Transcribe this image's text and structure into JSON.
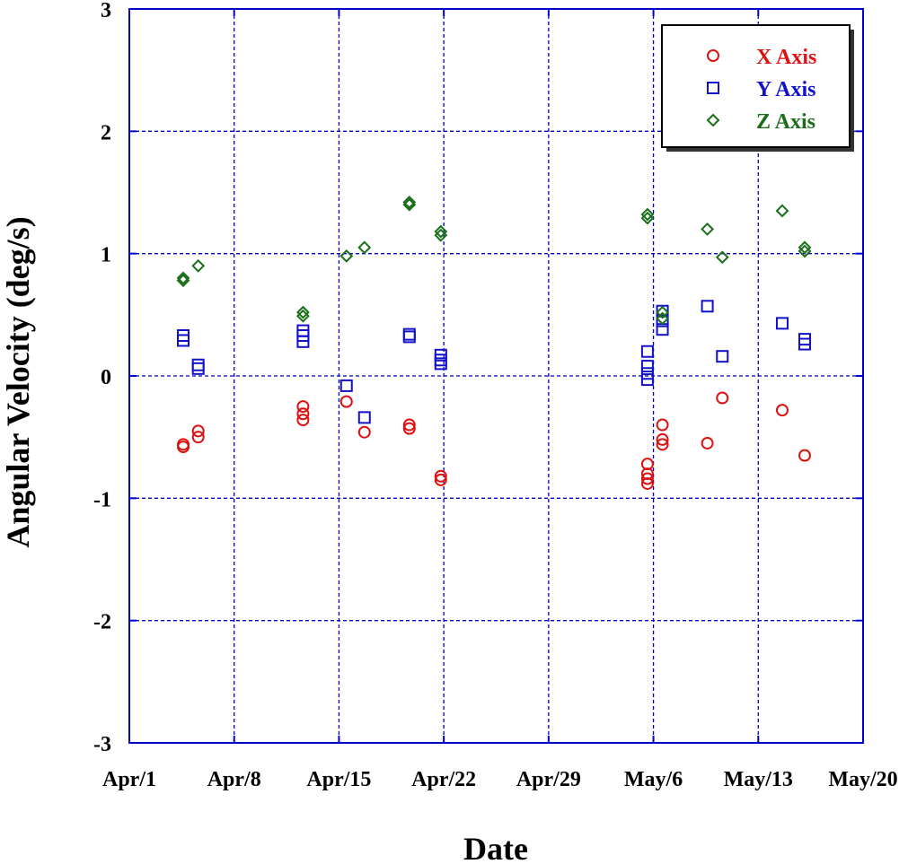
{
  "chart_data": {
    "type": "scatter",
    "xlabel": "Date",
    "ylabel": "Angular Velocity (deg/s)",
    "x_is_date": true,
    "xlim": [
      "Apr/1",
      "May/20"
    ],
    "x_ticks": [
      "Apr/1",
      "Apr/8",
      "Apr/15",
      "Apr/22",
      "Apr/29",
      "May/6",
      "May/13",
      "May/20"
    ],
    "ylim": [
      -3,
      3
    ],
    "y_ticks": [
      "-3",
      "-2",
      "-1",
      "0",
      "1",
      "2",
      "3"
    ],
    "grid": true,
    "legend_position": "top-right",
    "series": [
      {
        "name": "X Axis",
        "color": "#dd1111",
        "marker": "circle",
        "points": [
          [
            "Apr/4.6",
            -0.58
          ],
          [
            "Apr/4.6",
            -0.56
          ],
          [
            "Apr/5.6",
            -0.5
          ],
          [
            "Apr/5.6",
            -0.45
          ],
          [
            "Apr/12.6",
            -0.36
          ],
          [
            "Apr/12.6",
            -0.31
          ],
          [
            "Apr/12.6",
            -0.25
          ],
          [
            "Apr/15.5",
            -0.21
          ],
          [
            "Apr/16.7",
            -0.46
          ],
          [
            "Apr/19.7",
            -0.43
          ],
          [
            "Apr/19.7",
            -0.4
          ],
          [
            "Apr/21.8",
            -0.85
          ],
          [
            "Apr/21.8",
            -0.82
          ],
          [
            "May/5.6",
            -0.88
          ],
          [
            "May/5.6",
            -0.84
          ],
          [
            "May/5.6",
            -0.8
          ],
          [
            "May/5.6",
            -0.72
          ],
          [
            "May/6.6",
            -0.56
          ],
          [
            "May/6.6",
            -0.52
          ],
          [
            "May/6.6",
            -0.4
          ],
          [
            "May/9.6",
            -0.55
          ],
          [
            "May/10.6",
            -0.18
          ],
          [
            "May/14.6",
            -0.28
          ],
          [
            "May/16.1",
            -0.65
          ]
        ]
      },
      {
        "name": "Y Axis",
        "color": "#1111cc",
        "marker": "square",
        "points": [
          [
            "Apr/4.6",
            0.29
          ],
          [
            "Apr/4.6",
            0.33
          ],
          [
            "Apr/5.6",
            0.06
          ],
          [
            "Apr/5.6",
            0.09
          ],
          [
            "Apr/12.6",
            0.28
          ],
          [
            "Apr/12.6",
            0.33
          ],
          [
            "Apr/12.6",
            0.37
          ],
          [
            "Apr/15.5",
            -0.08
          ],
          [
            "Apr/16.7",
            -0.34
          ],
          [
            "Apr/19.7",
            0.32
          ],
          [
            "Apr/19.7",
            0.34
          ],
          [
            "Apr/21.8",
            0.1
          ],
          [
            "Apr/21.8",
            0.13
          ],
          [
            "Apr/21.8",
            0.17
          ],
          [
            "May/5.6",
            -0.03
          ],
          [
            "May/5.6",
            0.02
          ],
          [
            "May/5.6",
            0.08
          ],
          [
            "May/5.6",
            0.2
          ],
          [
            "May/6.6",
            0.38
          ],
          [
            "May/6.6",
            0.45
          ],
          [
            "May/6.6",
            0.53
          ],
          [
            "May/9.6",
            0.57
          ],
          [
            "May/10.6",
            0.16
          ],
          [
            "May/14.6",
            0.43
          ],
          [
            "May/16.1",
            0.26
          ],
          [
            "May/16.1",
            0.3
          ]
        ]
      },
      {
        "name": "Z Axis",
        "color": "#1a6e1a",
        "marker": "diamond",
        "points": [
          [
            "Apr/4.6",
            0.78
          ],
          [
            "Apr/4.6",
            0.8
          ],
          [
            "Apr/5.6",
            0.9
          ],
          [
            "Apr/12.6",
            0.49
          ],
          [
            "Apr/12.6",
            0.52
          ],
          [
            "Apr/15.5",
            0.98
          ],
          [
            "Apr/16.7",
            1.05
          ],
          [
            "Apr/19.7",
            1.4
          ],
          [
            "Apr/19.7",
            1.42
          ],
          [
            "Apr/21.8",
            1.15
          ],
          [
            "Apr/21.8",
            1.18
          ],
          [
            "May/5.6",
            1.29
          ],
          [
            "May/5.6",
            1.32
          ],
          [
            "May/6.6",
            0.47
          ],
          [
            "May/6.6",
            0.52
          ],
          [
            "May/9.6",
            1.2
          ],
          [
            "May/10.6",
            0.97
          ],
          [
            "May/14.6",
            1.35
          ],
          [
            "May/16.1",
            1.02
          ],
          [
            "May/16.1",
            1.05
          ]
        ]
      }
    ]
  }
}
